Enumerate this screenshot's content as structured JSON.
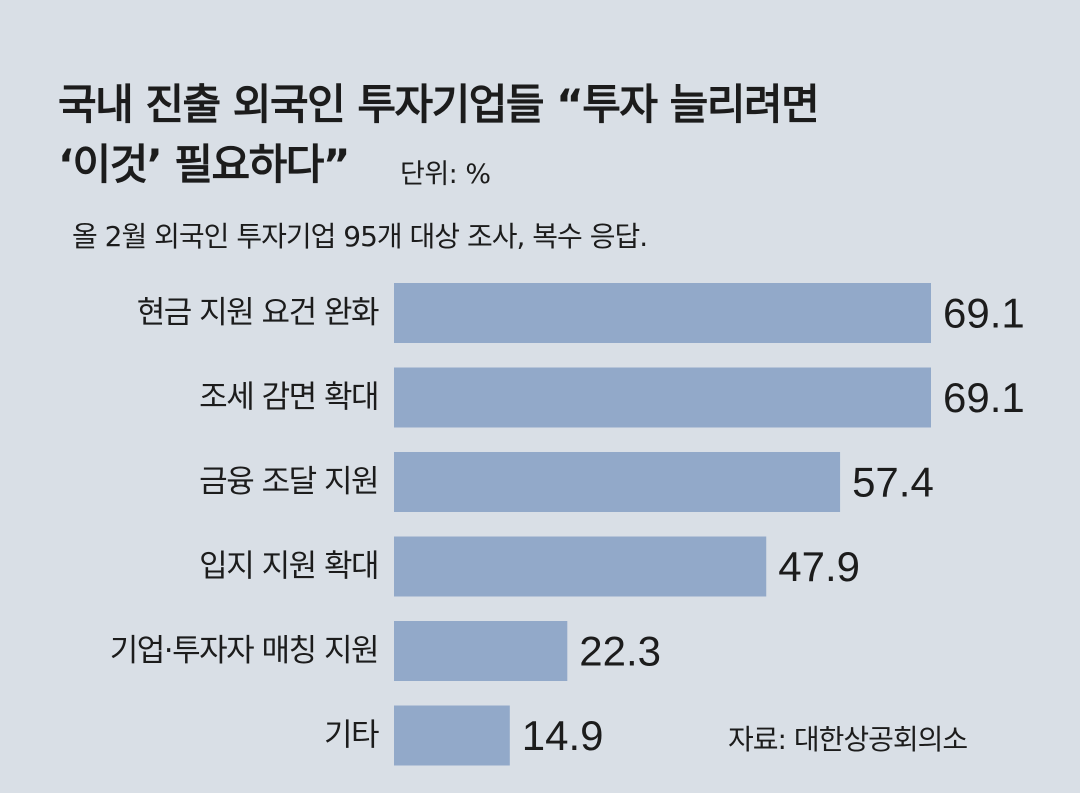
{
  "header": {
    "title_line1": "국내 진출 외국인 투자기업들 “투자 늘리려면",
    "title_line2": "‘이것’ 필요하다”",
    "unit": "단위: %",
    "subtitle": "올 2월 외국인 투자기업 95개 대상 조사, 복수 응답."
  },
  "footer": {
    "source": "자료: 대한상공회의소"
  },
  "colors": {
    "background": "#d9dfe6",
    "bar": "#92a9c9",
    "text": "#1c1c1c"
  },
  "chart_data": {
    "type": "bar",
    "orientation": "horizontal",
    "title": "국내 진출 외국인 투자기업들 “투자 늘리려면 ‘이것’ 필요하다”",
    "subtitle": "올 2월 외국인 투자기업 95개 대상 조사, 복수 응답.",
    "unit": "%",
    "categories": [
      "현금 지원 요건 완화",
      "조세 감면 확대",
      "금융 조달 지원",
      "입지 지원 확대",
      "기업·투자자 매칭 지원",
      "기타"
    ],
    "values": [
      69.1,
      69.1,
      57.4,
      47.9,
      22.3,
      14.9
    ],
    "value_labels": [
      "69.1",
      "69.1",
      "57.4",
      "47.9",
      "22.3",
      "14.9"
    ],
    "xlim": [
      0,
      69.1
    ],
    "grid": false,
    "legend": "none"
  }
}
